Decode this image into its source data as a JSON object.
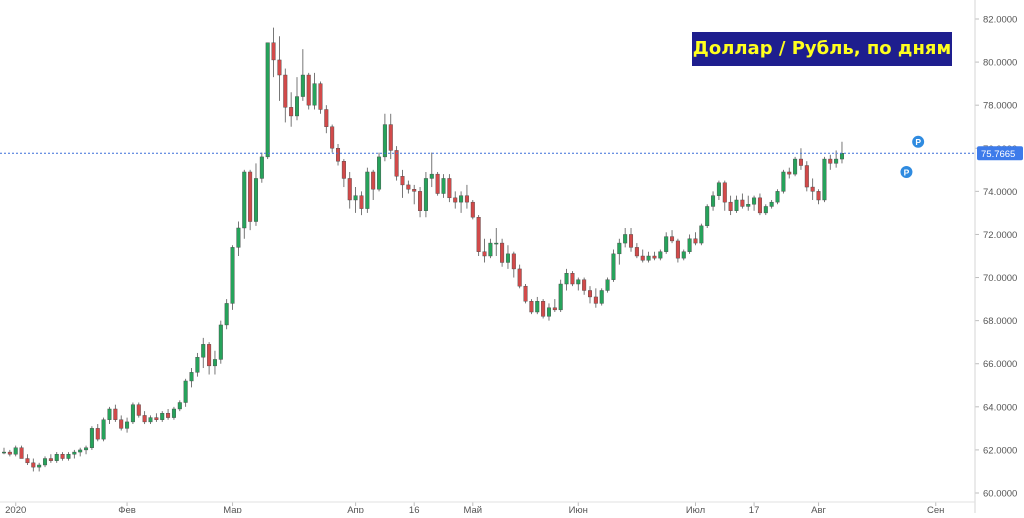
{
  "chart_data": {
    "type": "candlestick",
    "title": "Доллар / Рубль, по дням",
    "ylim": [
      60.0,
      82.0
    ],
    "y_ticks": [
      "82.0000",
      "80.0000",
      "78.0000",
      "76.0000",
      "74.0000",
      "72.0000",
      "70.0000",
      "68.0000",
      "66.0000",
      "64.0000",
      "62.0000",
      "60.0000"
    ],
    "x_ticks": [
      "2020",
      "Фев",
      "Мар",
      "Апр",
      "16",
      "Май",
      "Июн",
      "Июл",
      "17",
      "Авг",
      "Сен"
    ],
    "current_price": 75.7665,
    "current_price_label": "75.7665",
    "marker_label": "P",
    "candles": [
      [
        61.9,
        62.1,
        61.8,
        61.9
      ],
      [
        61.9,
        62.0,
        61.7,
        61.8
      ],
      [
        61.8,
        62.2,
        61.7,
        62.1
      ],
      [
        62.1,
        62.2,
        61.6,
        61.6
      ],
      [
        61.6,
        61.8,
        61.3,
        61.4
      ],
      [
        61.4,
        61.6,
        61.0,
        61.2
      ],
      [
        61.2,
        61.4,
        61.0,
        61.3
      ],
      [
        61.3,
        61.7,
        61.2,
        61.6
      ],
      [
        61.6,
        61.8,
        61.4,
        61.5
      ],
      [
        61.5,
        61.9,
        61.4,
        61.8
      ],
      [
        61.8,
        61.9,
        61.5,
        61.6
      ],
      [
        61.6,
        61.9,
        61.5,
        61.8
      ],
      [
        61.8,
        62.0,
        61.6,
        61.9
      ],
      [
        61.9,
        62.1,
        61.7,
        62.0
      ],
      [
        62.0,
        62.2,
        61.8,
        62.1
      ],
      [
        62.1,
        63.1,
        62.0,
        63.0
      ],
      [
        63.0,
        63.2,
        62.4,
        62.5
      ],
      [
        62.5,
        63.5,
        62.4,
        63.4
      ],
      [
        63.4,
        64.0,
        63.2,
        63.9
      ],
      [
        63.9,
        64.1,
        63.3,
        63.4
      ],
      [
        63.4,
        63.6,
        62.9,
        63.0
      ],
      [
        63.0,
        63.5,
        62.8,
        63.3
      ],
      [
        63.3,
        64.2,
        63.2,
        64.1
      ],
      [
        64.1,
        64.2,
        63.5,
        63.6
      ],
      [
        63.6,
        63.8,
        63.2,
        63.3
      ],
      [
        63.3,
        63.6,
        63.2,
        63.5
      ],
      [
        63.5,
        63.7,
        63.3,
        63.4
      ],
      [
        63.4,
        63.8,
        63.3,
        63.7
      ],
      [
        63.7,
        63.9,
        63.4,
        63.5
      ],
      [
        63.5,
        64.0,
        63.4,
        63.9
      ],
      [
        63.9,
        64.3,
        63.8,
        64.2
      ],
      [
        64.2,
        65.3,
        64.0,
        65.2
      ],
      [
        65.2,
        65.8,
        64.9,
        65.6
      ],
      [
        65.6,
        66.5,
        65.4,
        66.3
      ],
      [
        66.3,
        67.2,
        65.8,
        66.9
      ],
      [
        66.9,
        67.0,
        65.5,
        65.9
      ],
      [
        65.9,
        66.6,
        65.5,
        66.2
      ],
      [
        66.2,
        68.0,
        66.0,
        67.8
      ],
      [
        67.8,
        69.0,
        67.6,
        68.8
      ],
      [
        68.8,
        71.5,
        68.5,
        71.4
      ],
      [
        71.4,
        72.6,
        71.0,
        72.3
      ],
      [
        72.3,
        75.0,
        71.8,
        74.9
      ],
      [
        74.9,
        75.0,
        72.2,
        72.6
      ],
      [
        72.6,
        75.3,
        72.4,
        74.6
      ],
      [
        74.6,
        75.8,
        74.4,
        75.6
      ],
      [
        75.6,
        80.9,
        75.5,
        80.9
      ],
      [
        80.9,
        81.6,
        79.3,
        80.1
      ],
      [
        80.1,
        81.2,
        78.2,
        79.4
      ],
      [
        79.4,
        79.7,
        77.2,
        77.9
      ],
      [
        77.9,
        78.6,
        77.0,
        77.5
      ],
      [
        77.5,
        79.3,
        77.3,
        78.4
      ],
      [
        78.4,
        80.6,
        78.2,
        79.4
      ],
      [
        79.4,
        79.5,
        77.8,
        78.0
      ],
      [
        78.0,
        79.5,
        77.8,
        79.0
      ],
      [
        79.0,
        79.1,
        77.6,
        77.8
      ],
      [
        77.8,
        78.0,
        76.7,
        77.0
      ],
      [
        77.0,
        77.1,
        75.8,
        76.0
      ],
      [
        76.0,
        76.2,
        75.2,
        75.4
      ],
      [
        75.4,
        75.5,
        74.2,
        74.6
      ],
      [
        74.6,
        74.9,
        73.2,
        73.6
      ],
      [
        73.6,
        74.2,
        73.0,
        73.8
      ],
      [
        73.8,
        74.0,
        72.9,
        73.2
      ],
      [
        73.2,
        75.1,
        73.0,
        74.9
      ],
      [
        74.9,
        75.0,
        73.6,
        74.1
      ],
      [
        74.1,
        75.8,
        74.0,
        75.6
      ],
      [
        75.6,
        77.6,
        75.4,
        77.1
      ],
      [
        77.1,
        77.6,
        75.5,
        75.9
      ],
      [
        75.9,
        76.1,
        74.5,
        74.7
      ],
      [
        74.7,
        75.0,
        73.7,
        74.3
      ],
      [
        74.3,
        74.5,
        73.9,
        74.1
      ],
      [
        74.1,
        74.3,
        73.4,
        74.0
      ],
      [
        74.0,
        74.2,
        72.8,
        73.1
      ],
      [
        73.1,
        74.9,
        72.8,
        74.6
      ],
      [
        74.6,
        75.8,
        74.2,
        74.8
      ],
      [
        74.8,
        74.9,
        73.8,
        73.9
      ],
      [
        73.9,
        74.8,
        73.7,
        74.6
      ],
      [
        74.6,
        74.8,
        73.5,
        73.7
      ],
      [
        73.7,
        74.0,
        73.2,
        73.5
      ],
      [
        73.5,
        74.0,
        73.0,
        73.8
      ],
      [
        73.8,
        74.3,
        73.2,
        73.5
      ],
      [
        73.5,
        73.6,
        72.7,
        72.8
      ],
      [
        72.8,
        72.9,
        71.0,
        71.2
      ],
      [
        71.2,
        71.8,
        70.7,
        71.0
      ],
      [
        71.0,
        71.8,
        70.9,
        71.6
      ],
      [
        71.6,
        72.3,
        71.0,
        71.6
      ],
      [
        71.6,
        71.8,
        70.5,
        70.7
      ],
      [
        70.7,
        71.5,
        70.4,
        71.1
      ],
      [
        71.1,
        71.2,
        70.0,
        70.4
      ],
      [
        70.4,
        70.6,
        69.5,
        69.6
      ],
      [
        69.6,
        69.7,
        68.8,
        68.9
      ],
      [
        68.9,
        69.0,
        68.3,
        68.4
      ],
      [
        68.4,
        69.1,
        68.3,
        68.9
      ],
      [
        68.9,
        69.0,
        68.1,
        68.2
      ],
      [
        68.2,
        68.8,
        68.0,
        68.6
      ],
      [
        68.6,
        69.0,
        68.4,
        68.5
      ],
      [
        68.5,
        69.9,
        68.4,
        69.7
      ],
      [
        69.7,
        70.4,
        69.4,
        70.2
      ],
      [
        70.2,
        70.3,
        69.6,
        69.7
      ],
      [
        69.7,
        70.0,
        69.4,
        69.9
      ],
      [
        69.9,
        70.0,
        69.2,
        69.4
      ],
      [
        69.4,
        69.6,
        68.8,
        69.1
      ],
      [
        69.1,
        69.5,
        68.6,
        68.8
      ],
      [
        68.8,
        69.5,
        68.7,
        69.4
      ],
      [
        69.4,
        70.0,
        69.3,
        69.9
      ],
      [
        69.9,
        71.3,
        69.8,
        71.1
      ],
      [
        71.1,
        71.8,
        70.6,
        71.6
      ],
      [
        71.6,
        72.3,
        71.4,
        72.0
      ],
      [
        72.0,
        72.3,
        71.2,
        71.4
      ],
      [
        71.4,
        71.6,
        70.9,
        71.0
      ],
      [
        71.0,
        71.3,
        70.7,
        70.8
      ],
      [
        70.8,
        71.2,
        70.7,
        71.0
      ],
      [
        71.0,
        71.2,
        70.8,
        70.9
      ],
      [
        70.9,
        71.3,
        70.8,
        71.2
      ],
      [
        71.2,
        72.1,
        71.1,
        71.9
      ],
      [
        71.9,
        72.2,
        71.6,
        71.7
      ],
      [
        71.7,
        71.8,
        70.7,
        70.9
      ],
      [
        70.9,
        71.3,
        70.8,
        71.2
      ],
      [
        71.2,
        72.0,
        71.1,
        71.8
      ],
      [
        71.8,
        72.1,
        71.5,
        71.6
      ],
      [
        71.6,
        72.5,
        71.5,
        72.4
      ],
      [
        72.4,
        73.4,
        72.3,
        73.3
      ],
      [
        73.3,
        74.0,
        73.1,
        73.8
      ],
      [
        73.8,
        74.5,
        73.6,
        74.4
      ],
      [
        74.4,
        74.5,
        73.1,
        73.5
      ],
      [
        73.5,
        73.8,
        72.9,
        73.1
      ],
      [
        73.1,
        73.8,
        73.0,
        73.6
      ],
      [
        73.6,
        73.9,
        73.2,
        73.3
      ],
      [
        73.3,
        73.8,
        73.1,
        73.4
      ],
      [
        73.4,
        73.8,
        73.1,
        73.7
      ],
      [
        73.7,
        73.9,
        72.9,
        73.0
      ],
      [
        73.0,
        73.4,
        72.9,
        73.3
      ],
      [
        73.3,
        73.6,
        73.2,
        73.5
      ],
      [
        73.5,
        74.1,
        73.4,
        74.0
      ],
      [
        74.0,
        75.0,
        73.9,
        74.9
      ],
      [
        74.9,
        75.1,
        74.6,
        74.8
      ],
      [
        74.8,
        75.6,
        74.7,
        75.5
      ],
      [
        75.5,
        76.0,
        75.0,
        75.2
      ],
      [
        75.2,
        75.4,
        74.0,
        74.2
      ],
      [
        74.2,
        74.6,
        73.6,
        74.0
      ],
      [
        74.0,
        74.1,
        73.4,
        73.6
      ],
      [
        73.6,
        75.6,
        73.5,
        75.5
      ],
      [
        75.5,
        75.7,
        75.0,
        75.3
      ],
      [
        75.3,
        75.9,
        75.1,
        75.5
      ],
      [
        75.5,
        76.3,
        75.3,
        75.77
      ]
    ]
  }
}
